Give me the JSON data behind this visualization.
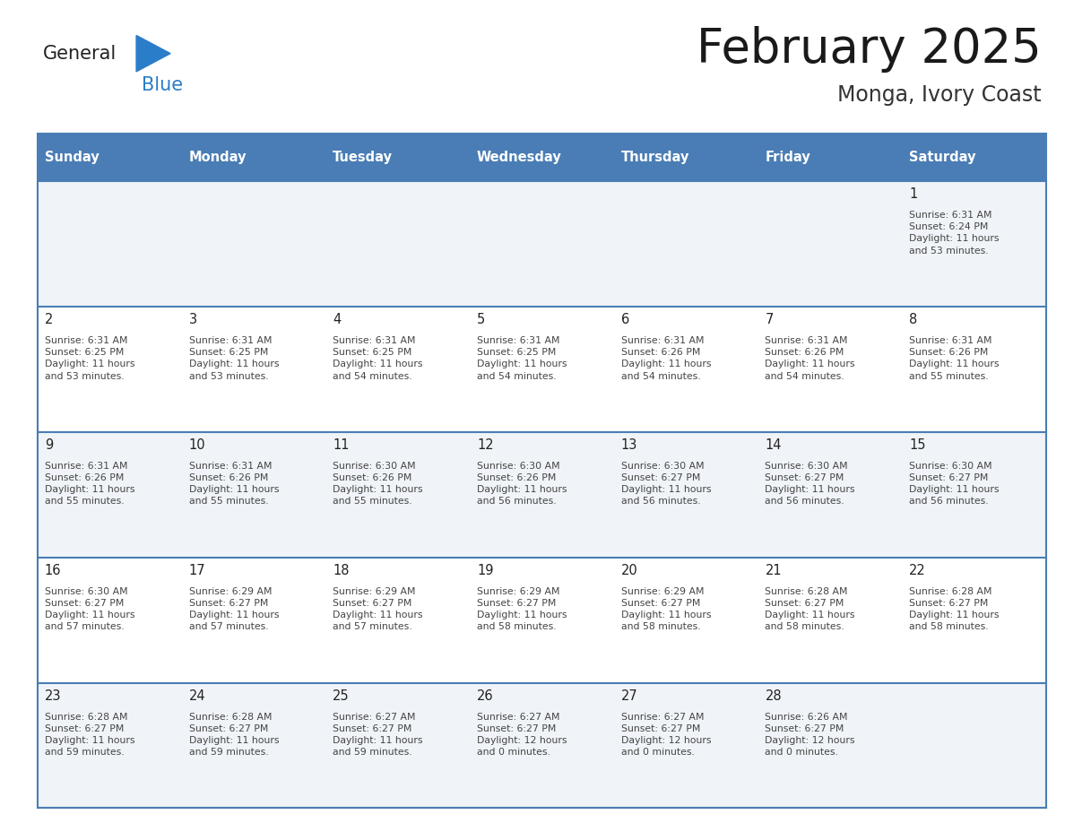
{
  "title": "February 2025",
  "subtitle": "Monga, Ivory Coast",
  "header_bg": "#4a7db5",
  "header_text": "#ffffff",
  "day_names": [
    "Sunday",
    "Monday",
    "Tuesday",
    "Wednesday",
    "Thursday",
    "Friday",
    "Saturday"
  ],
  "row_bg_light": "#f0f4f8",
  "row_bg_white": "#ffffff",
  "cell_border_color": "#4a7db5",
  "text_color": "#333333",
  "logo_general_color": "#222222",
  "logo_blue_color": "#2a7dc9",
  "calendar_data": [
    [
      null,
      null,
      null,
      null,
      null,
      null,
      {
        "day": 1,
        "sunrise": "6:31 AM",
        "sunset": "6:24 PM",
        "daylight": "11 hours\nand 53 minutes."
      }
    ],
    [
      {
        "day": 2,
        "sunrise": "6:31 AM",
        "sunset": "6:25 PM",
        "daylight": "11 hours\nand 53 minutes."
      },
      {
        "day": 3,
        "sunrise": "6:31 AM",
        "sunset": "6:25 PM",
        "daylight": "11 hours\nand 53 minutes."
      },
      {
        "day": 4,
        "sunrise": "6:31 AM",
        "sunset": "6:25 PM",
        "daylight": "11 hours\nand 54 minutes."
      },
      {
        "day": 5,
        "sunrise": "6:31 AM",
        "sunset": "6:25 PM",
        "daylight": "11 hours\nand 54 minutes."
      },
      {
        "day": 6,
        "sunrise": "6:31 AM",
        "sunset": "6:26 PM",
        "daylight": "11 hours\nand 54 minutes."
      },
      {
        "day": 7,
        "sunrise": "6:31 AM",
        "sunset": "6:26 PM",
        "daylight": "11 hours\nand 54 minutes."
      },
      {
        "day": 8,
        "sunrise": "6:31 AM",
        "sunset": "6:26 PM",
        "daylight": "11 hours\nand 55 minutes."
      }
    ],
    [
      {
        "day": 9,
        "sunrise": "6:31 AM",
        "sunset": "6:26 PM",
        "daylight": "11 hours\nand 55 minutes."
      },
      {
        "day": 10,
        "sunrise": "6:31 AM",
        "sunset": "6:26 PM",
        "daylight": "11 hours\nand 55 minutes."
      },
      {
        "day": 11,
        "sunrise": "6:30 AM",
        "sunset": "6:26 PM",
        "daylight": "11 hours\nand 55 minutes."
      },
      {
        "day": 12,
        "sunrise": "6:30 AM",
        "sunset": "6:26 PM",
        "daylight": "11 hours\nand 56 minutes."
      },
      {
        "day": 13,
        "sunrise": "6:30 AM",
        "sunset": "6:27 PM",
        "daylight": "11 hours\nand 56 minutes."
      },
      {
        "day": 14,
        "sunrise": "6:30 AM",
        "sunset": "6:27 PM",
        "daylight": "11 hours\nand 56 minutes."
      },
      {
        "day": 15,
        "sunrise": "6:30 AM",
        "sunset": "6:27 PM",
        "daylight": "11 hours\nand 56 minutes."
      }
    ],
    [
      {
        "day": 16,
        "sunrise": "6:30 AM",
        "sunset": "6:27 PM",
        "daylight": "11 hours\nand 57 minutes."
      },
      {
        "day": 17,
        "sunrise": "6:29 AM",
        "sunset": "6:27 PM",
        "daylight": "11 hours\nand 57 minutes."
      },
      {
        "day": 18,
        "sunrise": "6:29 AM",
        "sunset": "6:27 PM",
        "daylight": "11 hours\nand 57 minutes."
      },
      {
        "day": 19,
        "sunrise": "6:29 AM",
        "sunset": "6:27 PM",
        "daylight": "11 hours\nand 58 minutes."
      },
      {
        "day": 20,
        "sunrise": "6:29 AM",
        "sunset": "6:27 PM",
        "daylight": "11 hours\nand 58 minutes."
      },
      {
        "day": 21,
        "sunrise": "6:28 AM",
        "sunset": "6:27 PM",
        "daylight": "11 hours\nand 58 minutes."
      },
      {
        "day": 22,
        "sunrise": "6:28 AM",
        "sunset": "6:27 PM",
        "daylight": "11 hours\nand 58 minutes."
      }
    ],
    [
      {
        "day": 23,
        "sunrise": "6:28 AM",
        "sunset": "6:27 PM",
        "daylight": "11 hours\nand 59 minutes."
      },
      {
        "day": 24,
        "sunrise": "6:28 AM",
        "sunset": "6:27 PM",
        "daylight": "11 hours\nand 59 minutes."
      },
      {
        "day": 25,
        "sunrise": "6:27 AM",
        "sunset": "6:27 PM",
        "daylight": "11 hours\nand 59 minutes."
      },
      {
        "day": 26,
        "sunrise": "6:27 AM",
        "sunset": "6:27 PM",
        "daylight": "12 hours\nand 0 minutes."
      },
      {
        "day": 27,
        "sunrise": "6:27 AM",
        "sunset": "6:27 PM",
        "daylight": "12 hours\nand 0 minutes."
      },
      {
        "day": 28,
        "sunrise": "6:26 AM",
        "sunset": "6:27 PM",
        "daylight": "12 hours\nand 0 minutes."
      },
      null
    ]
  ]
}
